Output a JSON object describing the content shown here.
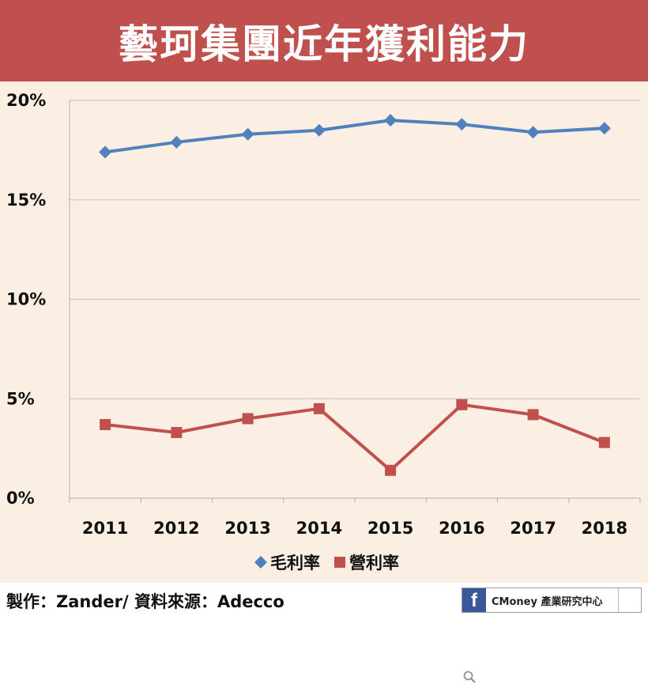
{
  "header": {
    "title": "藝珂集團近年獲利能力"
  },
  "footer": {
    "credit": "製作：Zander/ 資料來源：Adecco",
    "brand": "CMoney 產業研究中心",
    "fb_letter": "f"
  },
  "colors": {
    "title_bg": "#c0504d",
    "plot_bg": "#fbeee2",
    "series_gross": "#4f81bd",
    "series_operating": "#c0504d"
  },
  "chart_data": {
    "type": "line",
    "x": [
      "2011",
      "2012",
      "2013",
      "2014",
      "2015",
      "2016",
      "2017",
      "2018"
    ],
    "ylim": [
      0,
      20
    ],
    "yticks": [
      "0%",
      "5%",
      "10%",
      "15%",
      "20%"
    ],
    "legend_position": "bottom",
    "grid": true,
    "series": [
      {
        "name": "毛利率",
        "marker": "diamond",
        "color": "#4f81bd",
        "values": [
          17.4,
          17.9,
          18.3,
          18.5,
          19.0,
          18.8,
          18.4,
          18.6
        ]
      },
      {
        "name": "營利率",
        "marker": "square",
        "color": "#c0504d",
        "values": [
          3.7,
          3.3,
          4.0,
          4.5,
          1.4,
          4.7,
          4.2,
          2.8
        ]
      }
    ]
  }
}
